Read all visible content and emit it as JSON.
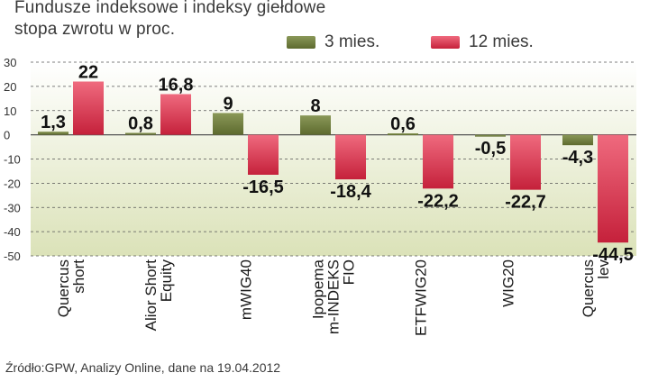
{
  "title_lines": [
    "Fundusze indeksowe i indeksy giełdowe",
    "stopa zwrotu w proc."
  ],
  "source": "Źródło:GPW, Analizy Online, dane na 19.04.2012",
  "colors": {
    "s1_light": "#8a9858",
    "s1_dark": "#5d6a2e",
    "s2_light": "#ef6a7e",
    "s2_dark": "#c5213b",
    "plot_top": "#ffffff",
    "plot_bottom": "#dbe2b8"
  },
  "chart_data": {
    "type": "bar",
    "categories": [
      [
        "Quercus",
        "short"
      ],
      [
        "Alior Short",
        "Equity"
      ],
      [
        "mWIG40"
      ],
      [
        "Ipopema",
        "m-INDEKS",
        "FIO"
      ],
      [
        "ETFWIG20"
      ],
      [
        "WIG20"
      ],
      [
        "Quercus",
        "lev"
      ]
    ],
    "series": [
      {
        "name": "3 mies.",
        "values": [
          1.3,
          0.8,
          9,
          8,
          0.6,
          -0.5,
          -4.3
        ],
        "labels": [
          "1,3",
          "0,8",
          "9",
          "8",
          "0,6",
          "-0,5",
          "-4,3"
        ]
      },
      {
        "name": "12 mies.",
        "values": [
          22,
          16.8,
          -16.5,
          -18.4,
          -22.2,
          -22.7,
          -44.5
        ],
        "labels": [
          "22",
          "16,8",
          "-16,5",
          "-18,4",
          "-22,2",
          "-22,7",
          "-44,5"
        ]
      }
    ],
    "yticks": [
      30,
      20,
      10,
      0,
      -10,
      -20,
      -30,
      -40,
      -50
    ],
    "ytick_labels": [
      "30",
      "20",
      "10",
      "0",
      "-10",
      "-20",
      "-30",
      "-40",
      "-50"
    ],
    "ylim": [
      -50,
      30
    ],
    "grid": true,
    "legend_position": "top"
  }
}
